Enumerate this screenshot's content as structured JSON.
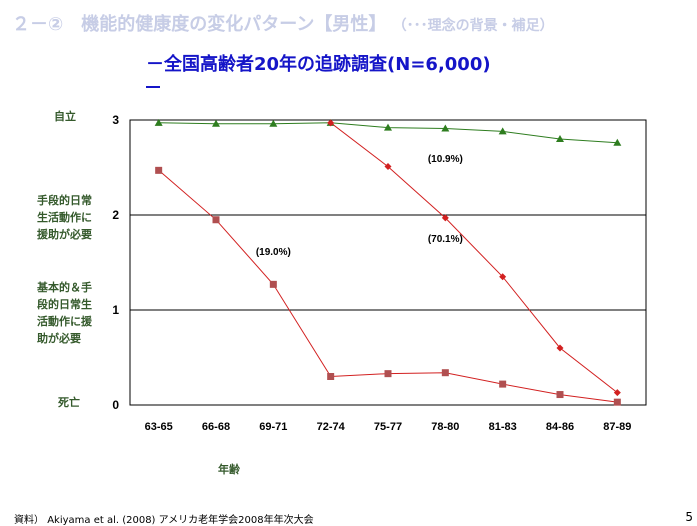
{
  "slide": {
    "title": "２－②　機能的健康度の変化パターン【男性】",
    "title_note": "（･･･理念の背景・補足）",
    "subtitle": "－全国高齢者20年の追跡調査(N=6,000)",
    "footer_label": "資料）",
    "footer_source": "Akiyama et al. (2008) アメリカ老年学会2008年年次大会",
    "page_number": "5",
    "category_labels": {
      "independent": "自立",
      "iadl": "手段的日常生活動作に援助が必要",
      "badl": "基本的＆手段的日常生活動作に援助が必要",
      "death": "死亡"
    }
  },
  "chart_data": {
    "type": "line",
    "xlabel": "年齢",
    "ylabel": "",
    "categories": [
      "63-65",
      "66-68",
      "69-71",
      "72-74",
      "75-77",
      "78-80",
      "81-83",
      "84-86",
      "87-89"
    ],
    "ylim": [
      0,
      3
    ],
    "yticks": [
      0,
      1,
      2,
      3
    ],
    "grid": true,
    "legend": "none",
    "series": [
      {
        "color": "#2e7d1f",
        "marker": "triangle",
        "values": [
          2.97,
          2.96,
          2.96,
          2.97,
          2.92,
          2.91,
          2.88,
          2.8,
          2.76
        ]
      },
      {
        "color": "#d22020",
        "marker": "diamond",
        "values": [
          null,
          null,
          null,
          2.97,
          2.51,
          1.97,
          1.35,
          0.6,
          0.13
        ]
      },
      {
        "color": "#b04f50",
        "line_color": "#d22020",
        "marker": "square",
        "values": [
          2.47,
          1.95,
          1.27,
          0.3,
          0.33,
          0.34,
          0.22,
          0.11,
          0.03
        ]
      }
    ],
    "annotations": [
      {
        "text": "(10.9%)",
        "x": "78-80",
        "y": 2.6
      },
      {
        "text": "(70.1%)",
        "x": "78-80",
        "y": 1.76
      },
      {
        "text": "(19.0%)",
        "x": "69-71",
        "y": 1.62
      }
    ]
  }
}
